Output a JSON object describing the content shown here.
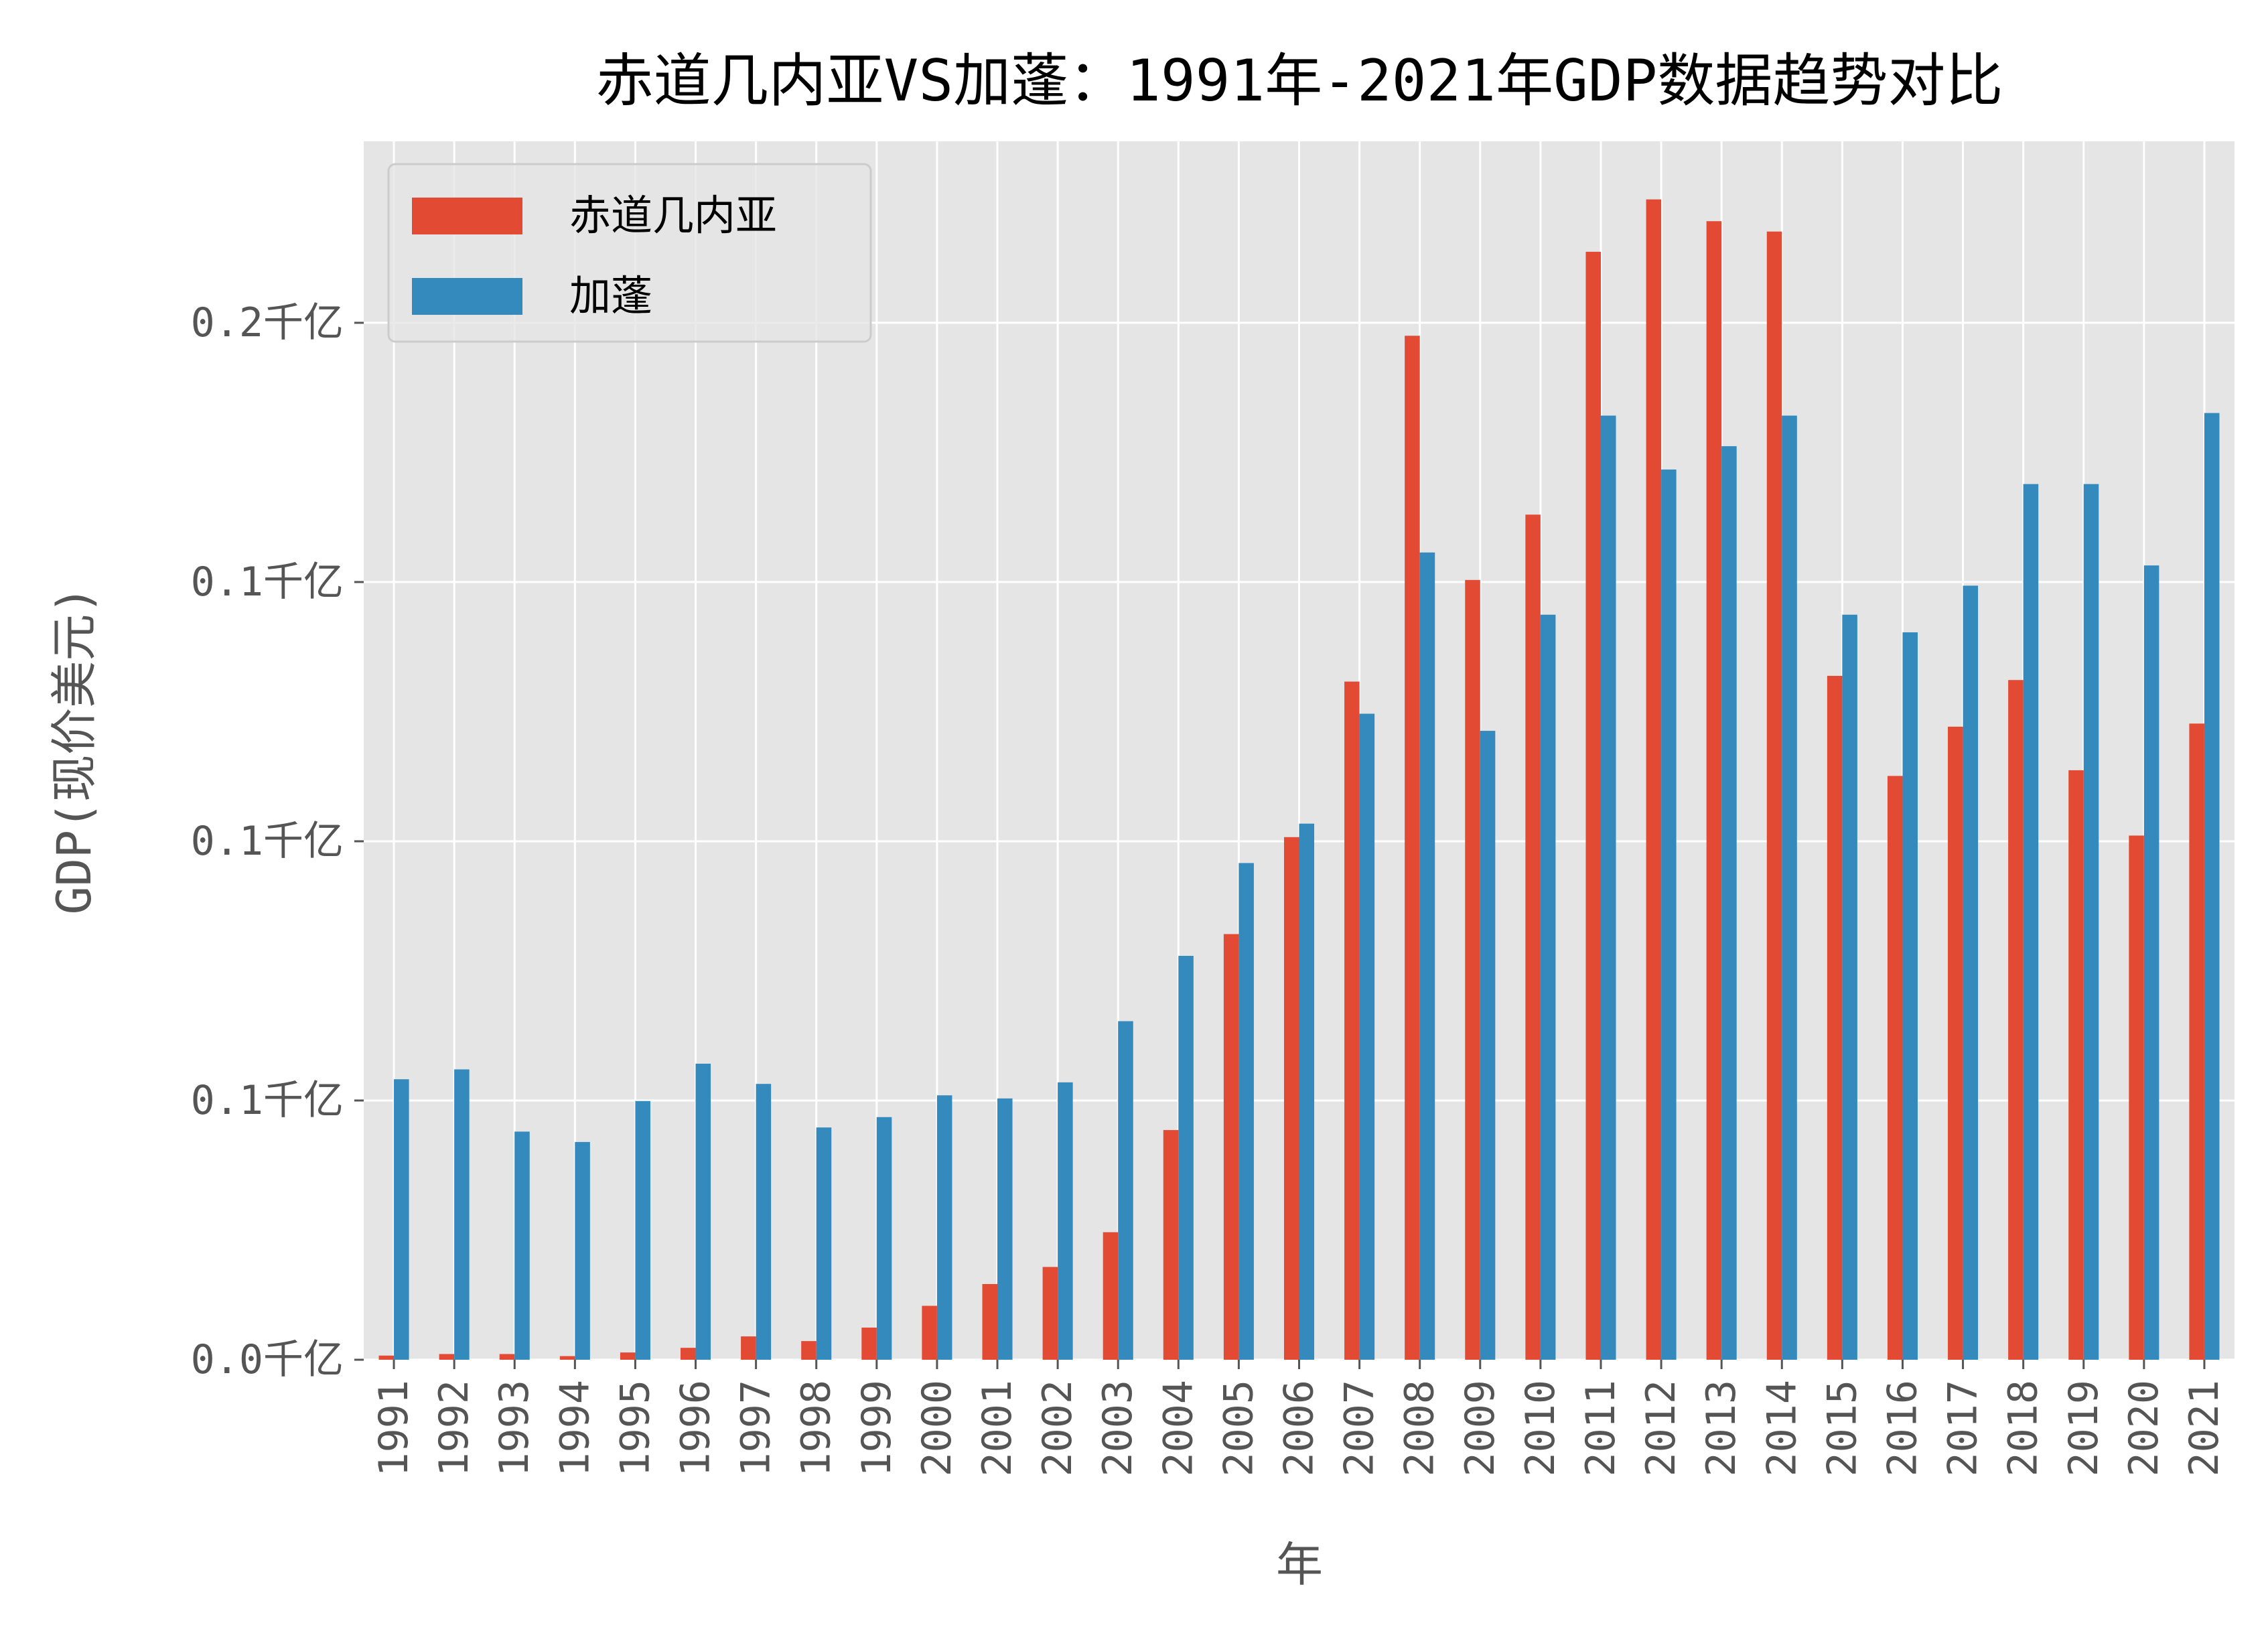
{
  "chart_data": {
    "type": "bar",
    "title": "赤道几内亚VS加蓬：1991年-2021年GDP数据趋势对比",
    "xlabel": "年",
    "ylabel": "GDP(现价美元)",
    "ylim": [
      0,
      0.235
    ],
    "yticks": [
      0,
      0.05,
      0.1,
      0.15,
      0.2
    ],
    "ytick_labels": [
      "0.0千亿",
      "0.1千亿",
      "0.1千亿",
      "0.1千亿",
      "0.2千亿"
    ],
    "grid": true,
    "legend_position": "top-left",
    "categories": [
      "1991",
      "1992",
      "1993",
      "1994",
      "1995",
      "1996",
      "1997",
      "1998",
      "1999",
      "2000",
      "2001",
      "2002",
      "2003",
      "2004",
      "2005",
      "2006",
      "2007",
      "2008",
      "2009",
      "2010",
      "2011",
      "2012",
      "2013",
      "2014",
      "2015",
      "2016",
      "2017",
      "2018",
      "2019",
      "2020",
      "2021"
    ],
    "series": [
      {
        "name": "赤道几内亚",
        "color": "#E24A33",
        "values": [
          0.0008,
          0.0011,
          0.0011,
          0.0007,
          0.0014,
          0.0023,
          0.0045,
          0.0036,
          0.0062,
          0.0104,
          0.0146,
          0.0179,
          0.0246,
          0.0443,
          0.0821,
          0.1008,
          0.1308,
          0.1975,
          0.1504,
          0.163,
          0.2137,
          0.2238,
          0.2196,
          0.2176,
          0.1319,
          0.1126,
          0.1221,
          0.1311,
          0.1137,
          0.1011,
          0.1227
        ]
      },
      {
        "name": "加蓬",
        "color": "#348ABD",
        "values": [
          0.0541,
          0.056,
          0.044,
          0.042,
          0.0499,
          0.0571,
          0.0532,
          0.0448,
          0.0468,
          0.051,
          0.0504,
          0.0535,
          0.0653,
          0.0779,
          0.0958,
          0.1034,
          0.1246,
          0.1557,
          0.1213,
          0.1437,
          0.1821,
          0.1717,
          0.1762,
          0.1821,
          0.1437,
          0.1403,
          0.1493,
          0.1689,
          0.1689,
          0.1532,
          0.1826
        ]
      }
    ],
    "background": "#E5E5E5",
    "grid_color": "#FFFFFF"
  }
}
